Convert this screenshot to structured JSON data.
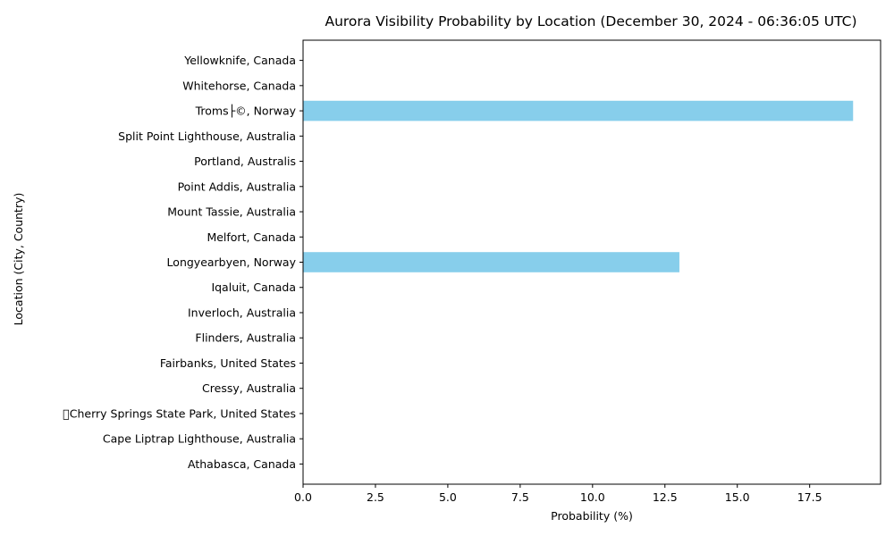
{
  "chart_data": {
    "type": "bar",
    "orientation": "horizontal",
    "title": "Aurora Visibility Probability by Location (December 30, 2024 - 06:36:05 UTC)",
    "xlabel": "Probability (%)",
    "ylabel": "Location (City, Country)",
    "categories": [
      "Athabasca,  Canada",
      "Cape Liptrap Lighthouse, Australia",
      "\u0000Cherry Springs State Park,  United States",
      "Cressy, Australia",
      "Fairbanks,  United States",
      "Flinders, Australia",
      "Inverloch, Australia",
      "Iqaluit,  Canada",
      "Longyearbyen,  Norway",
      "Melfort,  Canada",
      "Mount Tassie, Australia",
      "Point Addis, Australia",
      "Portland, Australis",
      "Split Point Lighthouse, Australia",
      "Troms├©,  Norway",
      "Whitehorse,  Canada",
      "Yellowknife, Canada"
    ],
    "values": [
      0,
      0,
      0,
      0,
      0,
      0,
      0,
      0,
      13,
      0,
      0,
      0,
      0,
      0,
      19,
      0,
      0
    ],
    "xlim": [
      0,
      19.95
    ],
    "xticks": [
      0.0,
      2.5,
      5.0,
      7.5,
      10.0,
      12.5,
      15.0,
      17.5
    ],
    "xtick_labels": [
      "0.0",
      "2.5",
      "5.0",
      "7.5",
      "10.0",
      "12.5",
      "15.0",
      "17.5"
    ],
    "bar_color": "#87ceeb",
    "grid": false,
    "legend": "none"
  }
}
